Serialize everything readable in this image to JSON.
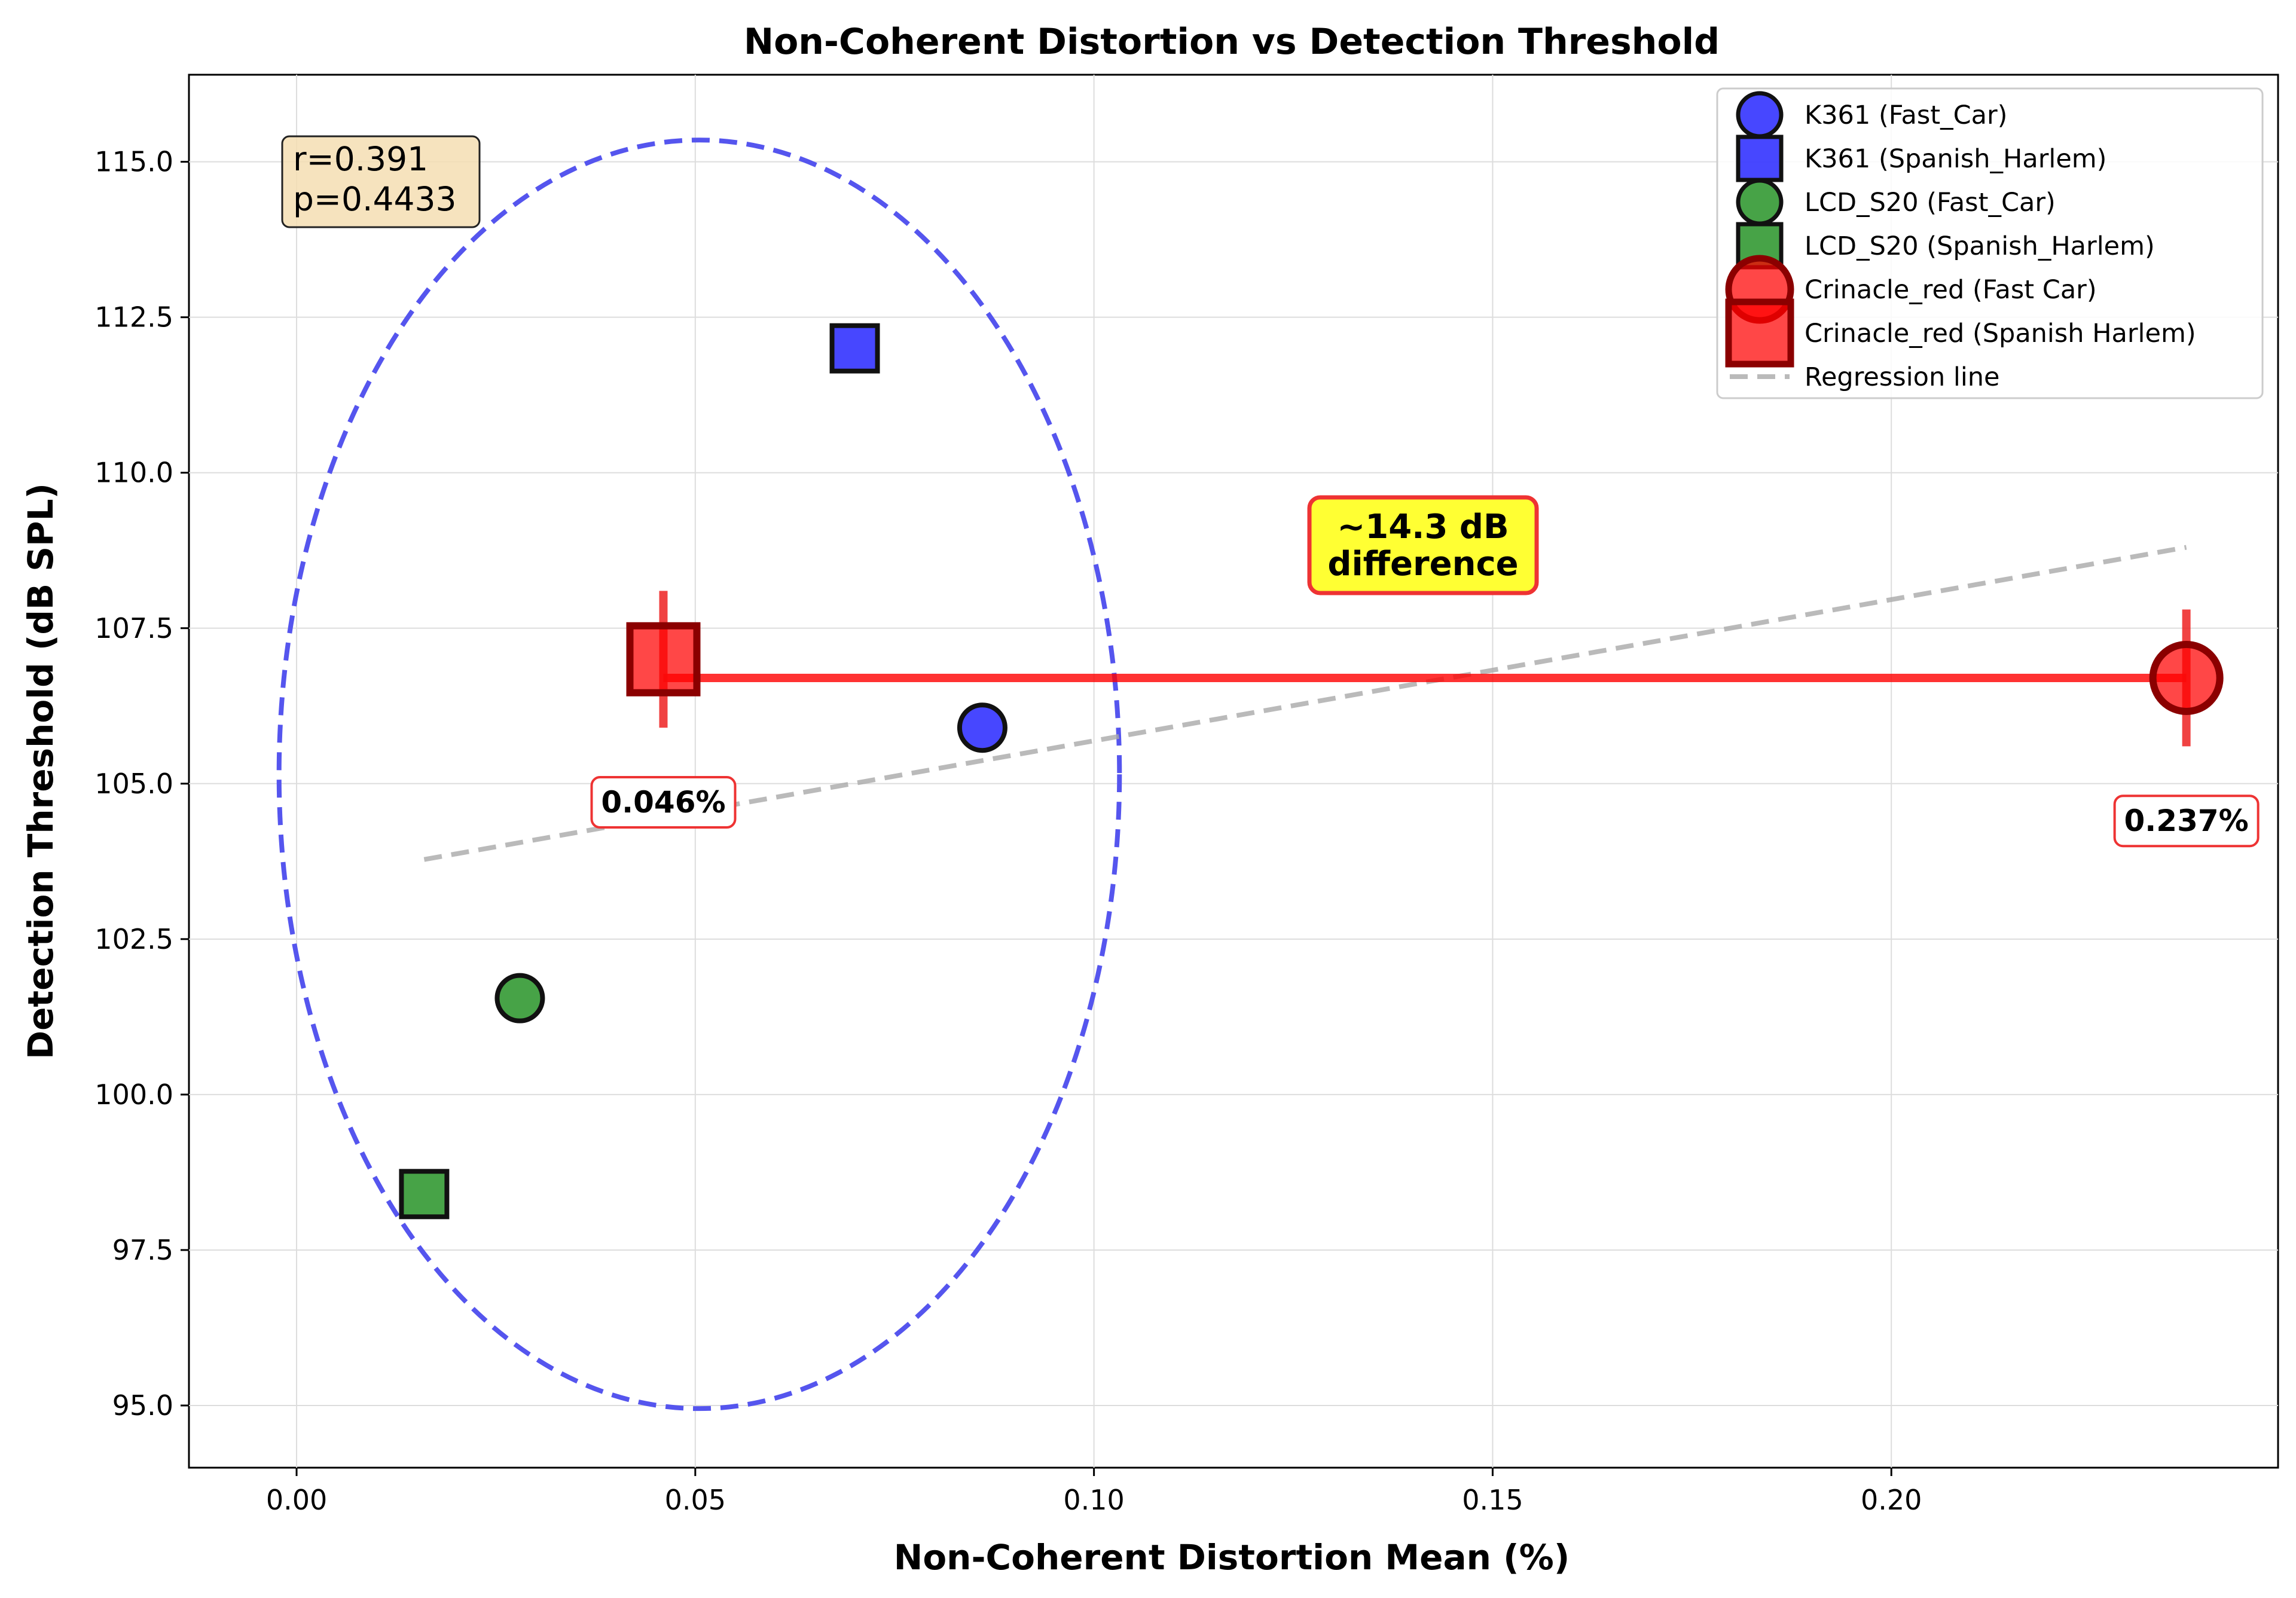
{
  "chart_data": {
    "type": "scatter",
    "title": "Non-Coherent Distortion vs Detection Threshold",
    "xlabel": "Non-Coherent Distortion Mean (%)",
    "ylabel": "Detection Threshold (dB SPL)",
    "xlim": [
      -0.0135,
      0.2485
    ],
    "ylim": [
      94.0,
      116.4
    ],
    "x_ticks": [
      0.0,
      0.05,
      0.1,
      0.15,
      0.2
    ],
    "x_tick_labels": [
      "0.00",
      "0.05",
      "0.10",
      "0.15",
      "0.20"
    ],
    "y_ticks": [
      95.0,
      97.5,
      100.0,
      102.5,
      105.0,
      107.5,
      110.0,
      112.5,
      115.0
    ],
    "y_tick_labels": [
      "95.0",
      "97.5",
      "100.0",
      "102.5",
      "105.0",
      "107.5",
      "110.0",
      "112.5",
      "115.0"
    ],
    "grid": true,
    "legend_position": "top-right",
    "series": [
      {
        "name": "K361 (Fast_Car)",
        "marker": "circle",
        "color": "#0000ff",
        "x": [
          0.086
        ],
        "y": [
          105.9
        ]
      },
      {
        "name": "K361 (Spanish_Harlem)",
        "marker": "square",
        "color": "#0000ff",
        "x": [
          0.07
        ],
        "y": [
          112.0
        ]
      },
      {
        "name": "LCD_S20 (Fast_Car)",
        "marker": "circle",
        "color": "#008000",
        "x": [
          0.028
        ],
        "y": [
          101.55
        ]
      },
      {
        "name": "LCD_S20 (Spanish_Harlem)",
        "marker": "square",
        "color": "#008000",
        "x": [
          0.016
        ],
        "y": [
          98.4
        ]
      },
      {
        "name": "Crinacle_red (Fast Car)",
        "marker": "circle",
        "color": "#ff0000",
        "x": [
          0.237
        ],
        "y": [
          106.7
        ],
        "error": 1.1
      },
      {
        "name": "Crinacle_red (Spanish Harlem)",
        "marker": "square",
        "color": "#ff0000",
        "x": [
          0.046
        ],
        "y": [
          107.0
        ],
        "error": 1.1
      }
    ],
    "regression": {
      "name": "Regression line",
      "x": [
        0.016,
        0.237
      ],
      "y": [
        103.78,
        108.8
      ],
      "color": "#aaaaaa"
    },
    "connector": {
      "x": [
        0.046,
        0.237
      ],
      "y": [
        106.7,
        106.7
      ],
      "color": "#ff0000"
    },
    "ellipse": {
      "cx": 0.0505,
      "cy": 105.15,
      "rx": 0.0527,
      "ry": 10.2,
      "color": "#5555ee"
    },
    "annotations": {
      "stats": [
        "r=0.391",
        "p=0.4433"
      ],
      "difference": [
        "~14.3 dB",
        "difference"
      ],
      "pct_left": {
        "text": "0.046%",
        "x": 0.046,
        "y": 104.7
      },
      "pct_right": {
        "text": "0.237%",
        "x": 0.237,
        "y": 104.4
      }
    }
  }
}
